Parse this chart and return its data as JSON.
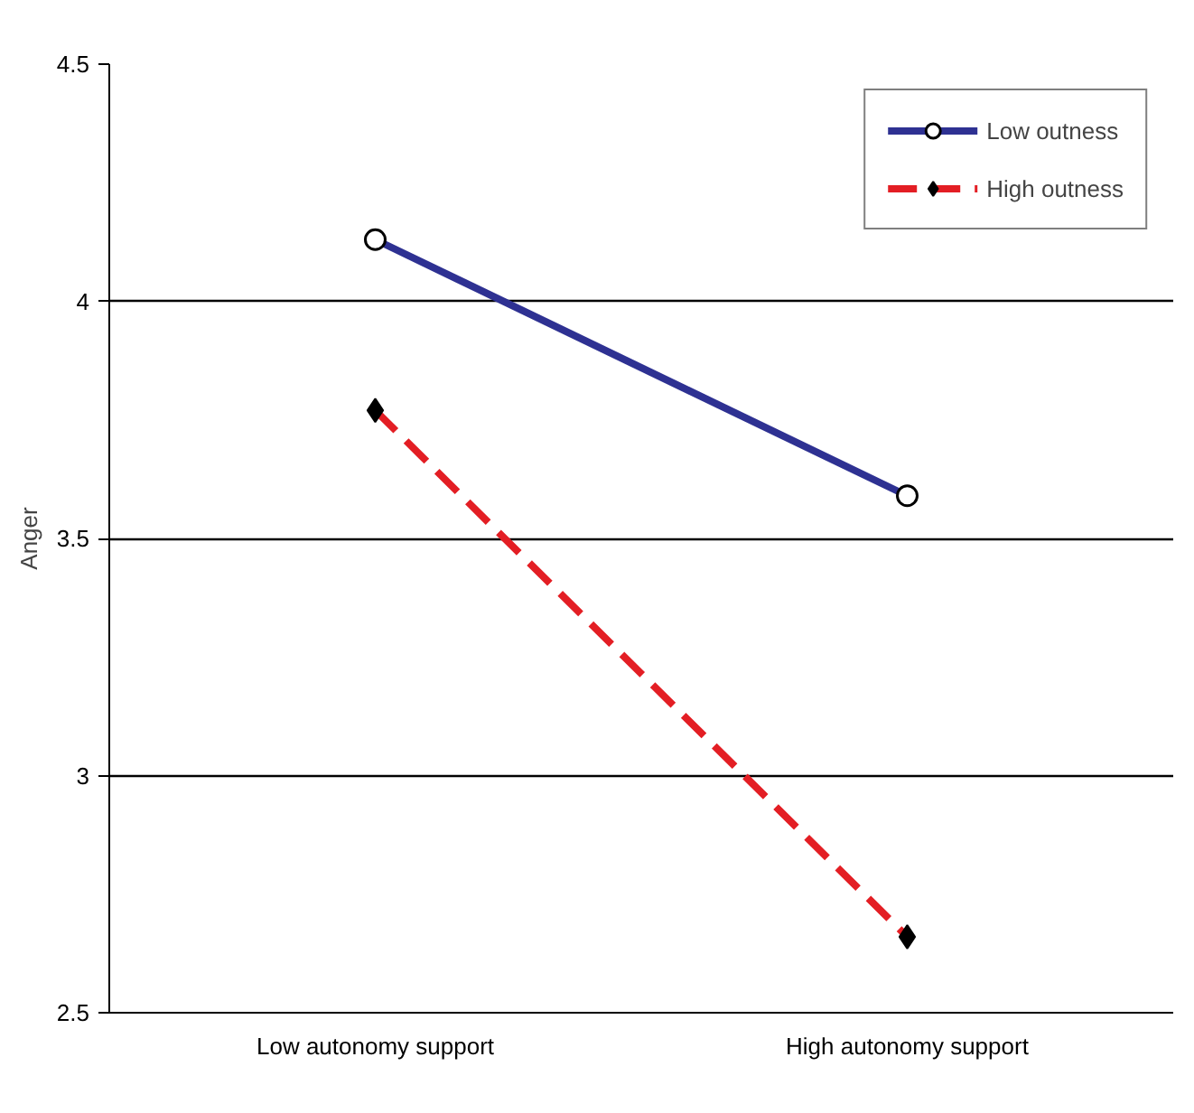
{
  "chart_data": {
    "type": "line",
    "ylabel": "Anger",
    "categories": [
      "Low autonomy support",
      "High autonomy support"
    ],
    "series": [
      {
        "name": "Low outness",
        "color": "#2e3192",
        "values": [
          4.13,
          3.59
        ],
        "marker": "circle",
        "line_style": "solid"
      },
      {
        "name": "High outness",
        "color": "#e31e24",
        "values": [
          3.77,
          2.66
        ],
        "marker": "diamond",
        "line_style": "dashed"
      }
    ],
    "ylim": [
      2.5,
      4.5
    ],
    "yticks": [
      2.5,
      3,
      3.5,
      4,
      4.5
    ],
    "grid": "y",
    "legend": "top right"
  }
}
